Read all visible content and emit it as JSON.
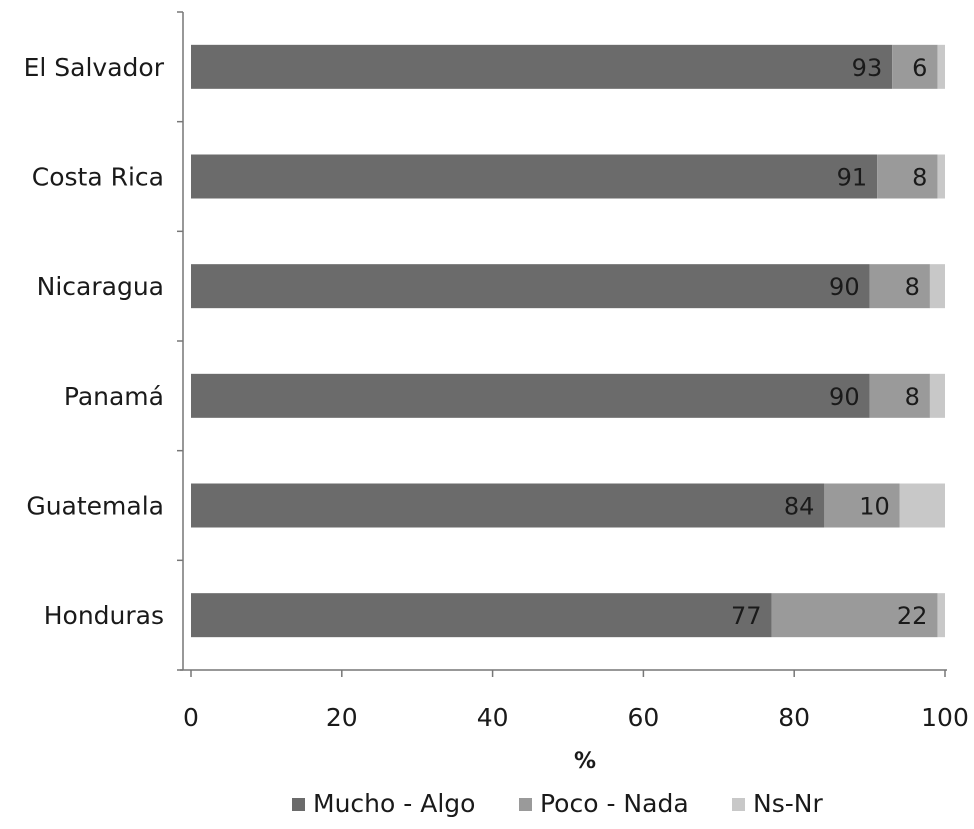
{
  "chart_data": {
    "type": "bar",
    "orientation": "horizontal",
    "stacked": true,
    "categories": [
      "El Salvador",
      "Costa Rica",
      "Nicaragua",
      "Panamá",
      "Guatemala",
      "Honduras"
    ],
    "series": [
      {
        "name": "Mucho - Algo",
        "values": [
          93,
          91,
          90,
          90,
          84,
          77
        ],
        "color": "#6b6b6b"
      },
      {
        "name": "Poco - Nada",
        "values": [
          6,
          8,
          8,
          8,
          10,
          22
        ],
        "color": "#9a9a9a"
      },
      {
        "name": "Ns-Nr",
        "values": [
          1,
          1,
          2,
          2,
          6,
          1
        ],
        "color": "#c8c8c8"
      }
    ],
    "data_labels": {
      "Mucho - Algo": [
        "93",
        "91",
        "90",
        "90",
        "84",
        "77"
      ],
      "Poco - Nada": [
        "6",
        "8",
        "8",
        "8",
        "10",
        "22"
      ]
    },
    "xlabel": "%",
    "xlim": [
      0,
      100
    ],
    "xticks": [
      "0",
      "20",
      "40",
      "60",
      "80",
      "100"
    ],
    "grid": false,
    "legend_position": "bottom"
  }
}
